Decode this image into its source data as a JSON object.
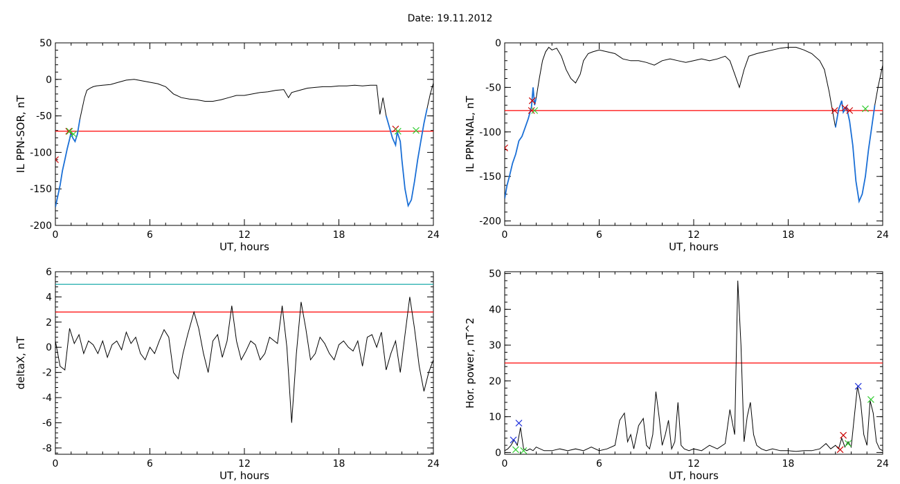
{
  "figure": {
    "title": "Date:  19.11.2012"
  },
  "colors": {
    "axis": "#000000",
    "data": "#000000",
    "threshold": "#ff0000",
    "secondary_threshold": "#00a0a0",
    "highlight": "#1a6fd6",
    "marker_red": "#cc0000",
    "marker_green": "#33cc33",
    "marker_blue": "#2233dd"
  },
  "chart_data": [
    {
      "type": "line",
      "ylabel": "IL PPN-SOR, nT",
      "xlabel": "UT, hours",
      "xlim": [
        0,
        24
      ],
      "ylim": [
        -200,
        50
      ],
      "xticks": [
        0,
        6,
        12,
        18,
        24
      ],
      "yticks": [
        -200,
        -150,
        -100,
        -50,
        0,
        50
      ],
      "series": [
        {
          "x": [
            0,
            0.15,
            0.3,
            0.45,
            0.6,
            0.75,
            0.9,
            1.0,
            1.1,
            1.25,
            1.4,
            1.55,
            1.7,
            1.85,
            2.0,
            2.2,
            2.4,
            2.6,
            3,
            3.5,
            4,
            4.5,
            5,
            5.5,
            6,
            6.5,
            7,
            7.5,
            8,
            8.5,
            9,
            9.5,
            10,
            10.5,
            11,
            11.5,
            12,
            12.5,
            13,
            13.5,
            14,
            14.5,
            14.8,
            15,
            15.5,
            16,
            16.5,
            17,
            17.5,
            18,
            18.5,
            19,
            19.5,
            20,
            20.4,
            20.6,
            20.8,
            21.0,
            21.2,
            21.4,
            21.6,
            21.7,
            21.9,
            22.0,
            22.2,
            22.4,
            22.6,
            22.8,
            23.0,
            23.2,
            23.4,
            23.6,
            23.8,
            24
          ],
          "y": [
            -175,
            -160,
            -145,
            -125,
            -110,
            -95,
            -82,
            -72,
            -80,
            -85,
            -75,
            -55,
            -40,
            -25,
            -15,
            -12,
            -10,
            -9,
            -8,
            -7,
            -4,
            -1,
            0,
            -2,
            -4,
            -6,
            -10,
            -20,
            -25,
            -27,
            -28,
            -30,
            -30,
            -28,
            -25,
            -22,
            -22,
            -20,
            -18,
            -17,
            -15,
            -14,
            -25,
            -18,
            -15,
            -12,
            -11,
            -10,
            -10,
            -9,
            -9,
            -8,
            -9,
            -8,
            -8,
            -48,
            -25,
            -50,
            -65,
            -80,
            -90,
            -72,
            -85,
            -110,
            -150,
            -173,
            -165,
            -140,
            -110,
            -85,
            -60,
            -40,
            -20,
            -5
          ]
        }
      ],
      "threshold": -71,
      "highlighted_intervals": [
        [
          0,
          1.6
        ],
        [
          21.0,
          23.6
        ]
      ],
      "markers": [
        {
          "x": 0.0,
          "y": -110,
          "color": "red"
        },
        {
          "x": 0.85,
          "y": -71,
          "color": "red"
        },
        {
          "x": 0.9,
          "y": -71,
          "color": "green"
        },
        {
          "x": 1.15,
          "y": -75,
          "color": "green"
        },
        {
          "x": 21.6,
          "y": -68,
          "color": "red"
        },
        {
          "x": 21.75,
          "y": -71,
          "color": "green"
        },
        {
          "x": 22.9,
          "y": -70,
          "color": "green"
        }
      ]
    },
    {
      "type": "line",
      "ylabel": "IL PPN-NAL, nT",
      "xlabel": "UT, hours",
      "xlim": [
        0,
        24
      ],
      "ylim": [
        -205,
        0
      ],
      "xticks": [
        0,
        6,
        12,
        18,
        24
      ],
      "yticks": [
        -200,
        -150,
        -100,
        -50,
        0
      ],
      "series": [
        {
          "x": [
            0,
            0.15,
            0.3,
            0.5,
            0.7,
            0.9,
            1.1,
            1.3,
            1.5,
            1.7,
            1.8,
            1.9,
            2.0,
            2.2,
            2.4,
            2.6,
            2.8,
            3.0,
            3.3,
            3.6,
            3.9,
            4.2,
            4.5,
            4.8,
            5.0,
            5.3,
            5.6,
            6,
            6.5,
            7,
            7.5,
            8,
            8.5,
            9,
            9.5,
            10,
            10.5,
            11,
            11.5,
            12,
            12.5,
            13,
            13.5,
            14,
            14.3,
            14.6,
            14.9,
            15.2,
            15.5,
            16,
            16.5,
            17,
            17.5,
            18,
            18.5,
            19,
            19.5,
            20,
            20.3,
            20.6,
            20.8,
            21.0,
            21.2,
            21.4,
            21.5,
            21.7,
            21.9,
            22.1,
            22.3,
            22.5,
            22.7,
            22.9,
            23.1,
            23.3,
            23.5,
            23.7,
            24
          ],
          "y": [
            -175,
            -160,
            -150,
            -135,
            -125,
            -110,
            -105,
            -95,
            -85,
            -72,
            -50,
            -70,
            -62,
            -40,
            -20,
            -10,
            -5,
            -8,
            -6,
            -15,
            -30,
            -40,
            -45,
            -35,
            -20,
            -12,
            -10,
            -8,
            -10,
            -12,
            -18,
            -20,
            -20,
            -22,
            -25,
            -20,
            -18,
            -20,
            -22,
            -20,
            -18,
            -20,
            -18,
            -15,
            -20,
            -35,
            -50,
            -30,
            -15,
            -12,
            -10,
            -8,
            -6,
            -5,
            -5,
            -8,
            -12,
            -20,
            -30,
            -55,
            -75,
            -95,
            -75,
            -65,
            -78,
            -72,
            -88,
            -115,
            -155,
            -178,
            -170,
            -150,
            -120,
            -95,
            -70,
            -50,
            -25
          ]
        }
      ],
      "threshold": -76,
      "highlighted_intervals": [
        [
          0,
          2.0
        ],
        [
          20.9,
          23.5
        ]
      ],
      "markers": [
        {
          "x": 0.0,
          "y": -118,
          "color": "red"
        },
        {
          "x": 1.7,
          "y": -76,
          "color": "red"
        },
        {
          "x": 1.75,
          "y": -65,
          "color": "red"
        },
        {
          "x": 1.9,
          "y": -76,
          "color": "green"
        },
        {
          "x": 20.95,
          "y": -76,
          "color": "red"
        },
        {
          "x": 21.6,
          "y": -73,
          "color": "red"
        },
        {
          "x": 21.9,
          "y": -76,
          "color": "red"
        },
        {
          "x": 22.9,
          "y": -74,
          "color": "green"
        }
      ]
    },
    {
      "type": "line",
      "ylabel": "deltaX, nT",
      "xlabel": "UT, hours",
      "xlim": [
        0,
        24
      ],
      "ylim": [
        -8.5,
        6
      ],
      "xticks": [
        0,
        6,
        12,
        18,
        24
      ],
      "yticks": [
        -8,
        -6,
        -4,
        -2,
        0,
        2,
        4,
        6
      ],
      "series": [
        {
          "x": [
            0,
            0.3,
            0.6,
            0.9,
            1.2,
            1.5,
            1.8,
            2.1,
            2.4,
            2.7,
            3.0,
            3.3,
            3.6,
            3.9,
            4.2,
            4.5,
            4.8,
            5.1,
            5.4,
            5.7,
            6.0,
            6.3,
            6.6,
            6.9,
            7.2,
            7.5,
            7.8,
            8.1,
            8.4,
            8.8,
            9.1,
            9.4,
            9.7,
            10.0,
            10.3,
            10.6,
            10.9,
            11.2,
            11.5,
            11.8,
            12.1,
            12.4,
            12.7,
            13.0,
            13.3,
            13.6,
            13.9,
            14.1,
            14.4,
            14.7,
            15.0,
            15.3,
            15.6,
            15.9,
            16.2,
            16.5,
            16.8,
            17.1,
            17.4,
            17.7,
            18.0,
            18.3,
            18.6,
            18.9,
            19.2,
            19.5,
            19.8,
            20.1,
            20.4,
            20.7,
            21.0,
            21.3,
            21.6,
            21.9,
            22.2,
            22.5,
            22.8,
            23.1,
            23.4,
            23.7,
            24
          ],
          "y": [
            0.5,
            -1.5,
            -1.8,
            1.5,
            0.3,
            1.0,
            -0.5,
            0.5,
            0.2,
            -0.5,
            0.5,
            -0.8,
            0.2,
            0.5,
            -0.2,
            1.2,
            0.3,
            0.8,
            -0.5,
            -1.0,
            0.0,
            -0.5,
            0.5,
            1.4,
            0.8,
            -2.0,
            -2.5,
            -0.5,
            1.0,
            2.8,
            1.5,
            -0.5,
            -2.0,
            0.5,
            1.0,
            -0.8,
            0.5,
            3.3,
            0.5,
            -1.0,
            -0.3,
            0.5,
            0.2,
            -1.0,
            -0.5,
            0.8,
            0.5,
            0.3,
            3.3,
            0.0,
            -6.0,
            -0.5,
            3.6,
            1.5,
            -1.0,
            -0.5,
            0.8,
            0.3,
            -0.5,
            -1.0,
            0.2,
            0.5,
            0.0,
            -0.3,
            0.5,
            -1.5,
            0.8,
            1.0,
            0.0,
            1.2,
            -1.8,
            -0.5,
            0.5,
            -2.0,
            1.0,
            4.0,
            1.5,
            -1.5,
            -3.5,
            -2.0,
            -1.0
          ]
        }
      ],
      "threshold": 2.8,
      "secondary_threshold": 5.0
    },
    {
      "type": "line",
      "ylabel": "Hor. power, nT^2",
      "xlabel": "UT, hours",
      "xlim": [
        0,
        24
      ],
      "ylim": [
        -0.5,
        50.5
      ],
      "xticks": [
        0,
        6,
        12,
        18,
        24
      ],
      "yticks": [
        0,
        10,
        20,
        30,
        40,
        50
      ],
      "series": [
        {
          "x": [
            0,
            0.2,
            0.4,
            0.6,
            0.8,
            1.0,
            1.2,
            1.4,
            1.6,
            1.8,
            2.0,
            2.5,
            3.0,
            3.5,
            4.0,
            4.5,
            5.0,
            5.5,
            6.0,
            6.5,
            7.0,
            7.3,
            7.6,
            7.8,
            8.0,
            8.2,
            8.5,
            8.8,
            9.0,
            9.2,
            9.4,
            9.6,
            9.8,
            10.0,
            10.2,
            10.4,
            10.6,
            10.8,
            11.0,
            11.2,
            11.4,
            11.7,
            12.0,
            12.5,
            13.0,
            13.5,
            14.0,
            14.3,
            14.6,
            14.8,
            15.0,
            15.2,
            15.4,
            15.6,
            15.8,
            16.0,
            16.3,
            16.6,
            17.0,
            17.5,
            18.0,
            18.5,
            19.0,
            19.5,
            20.0,
            20.4,
            20.7,
            21.0,
            21.2,
            21.4,
            21.6,
            21.8,
            22.0,
            22.2,
            22.4,
            22.6,
            22.8,
            23.0,
            23.2,
            23.4,
            23.6,
            23.8,
            24
          ],
          "y": [
            0.5,
            1.0,
            2.0,
            3.5,
            2.0,
            7.0,
            1.0,
            0.5,
            1.0,
            0.5,
            1.5,
            0.5,
            0.5,
            1.0,
            0.5,
            1.0,
            0.5,
            1.5,
            0.5,
            1.0,
            2.0,
            9.0,
            11.0,
            3.0,
            5.0,
            1.0,
            7.5,
            9.5,
            2.0,
            1.0,
            5.0,
            17.0,
            10.0,
            2.0,
            5.0,
            9.0,
            1.0,
            3.0,
            14.0,
            2.0,
            1.0,
            0.5,
            1.0,
            0.5,
            2.0,
            1.0,
            2.5,
            12.0,
            5.0,
            48.0,
            30.0,
            3.0,
            10.0,
            14.0,
            5.0,
            2.0,
            1.0,
            0.5,
            1.0,
            0.5,
            0.5,
            0.3,
            0.5,
            0.5,
            1.0,
            2.5,
            1.0,
            2.0,
            1.0,
            4.0,
            1.5,
            3.0,
            1.5,
            10.0,
            18.5,
            14.0,
            5.0,
            2.0,
            14.5,
            11.0,
            3.0,
            1.0,
            0.5
          ]
        }
      ],
      "threshold": 25,
      "markers": [
        {
          "x": 0.9,
          "y": 8.2,
          "color": "blue"
        },
        {
          "x": 0.55,
          "y": 3.5,
          "color": "blue"
        },
        {
          "x": 0.7,
          "y": 0.8,
          "color": "green"
        },
        {
          "x": 1.2,
          "y": 0.5,
          "color": "green"
        },
        {
          "x": 21.3,
          "y": 0.8,
          "color": "red"
        },
        {
          "x": 21.5,
          "y": 4.8,
          "color": "red"
        },
        {
          "x": 21.8,
          "y": 2.5,
          "color": "green"
        },
        {
          "x": 22.45,
          "y": 18.5,
          "color": "blue"
        },
        {
          "x": 23.25,
          "y": 14.8,
          "color": "green"
        }
      ]
    }
  ]
}
